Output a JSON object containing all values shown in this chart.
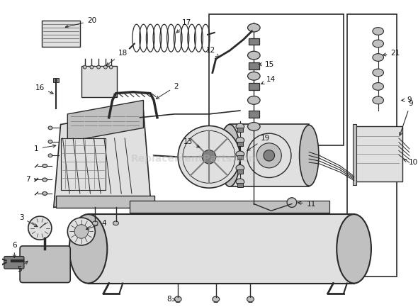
{
  "bg_color": "#ffffff",
  "lc": "#2a2a2a",
  "fc_light": "#e0e0e0",
  "fc_mid": "#c0c0c0",
  "fc_dark": "#808080",
  "fc_vdark": "#404040",
  "watermark": "ReplacementParts.com",
  "wm_color": "#bbbbbb",
  "wm_alpha": 0.4,
  "figsize": [
    5.9,
    4.33
  ],
  "dpi": 100
}
